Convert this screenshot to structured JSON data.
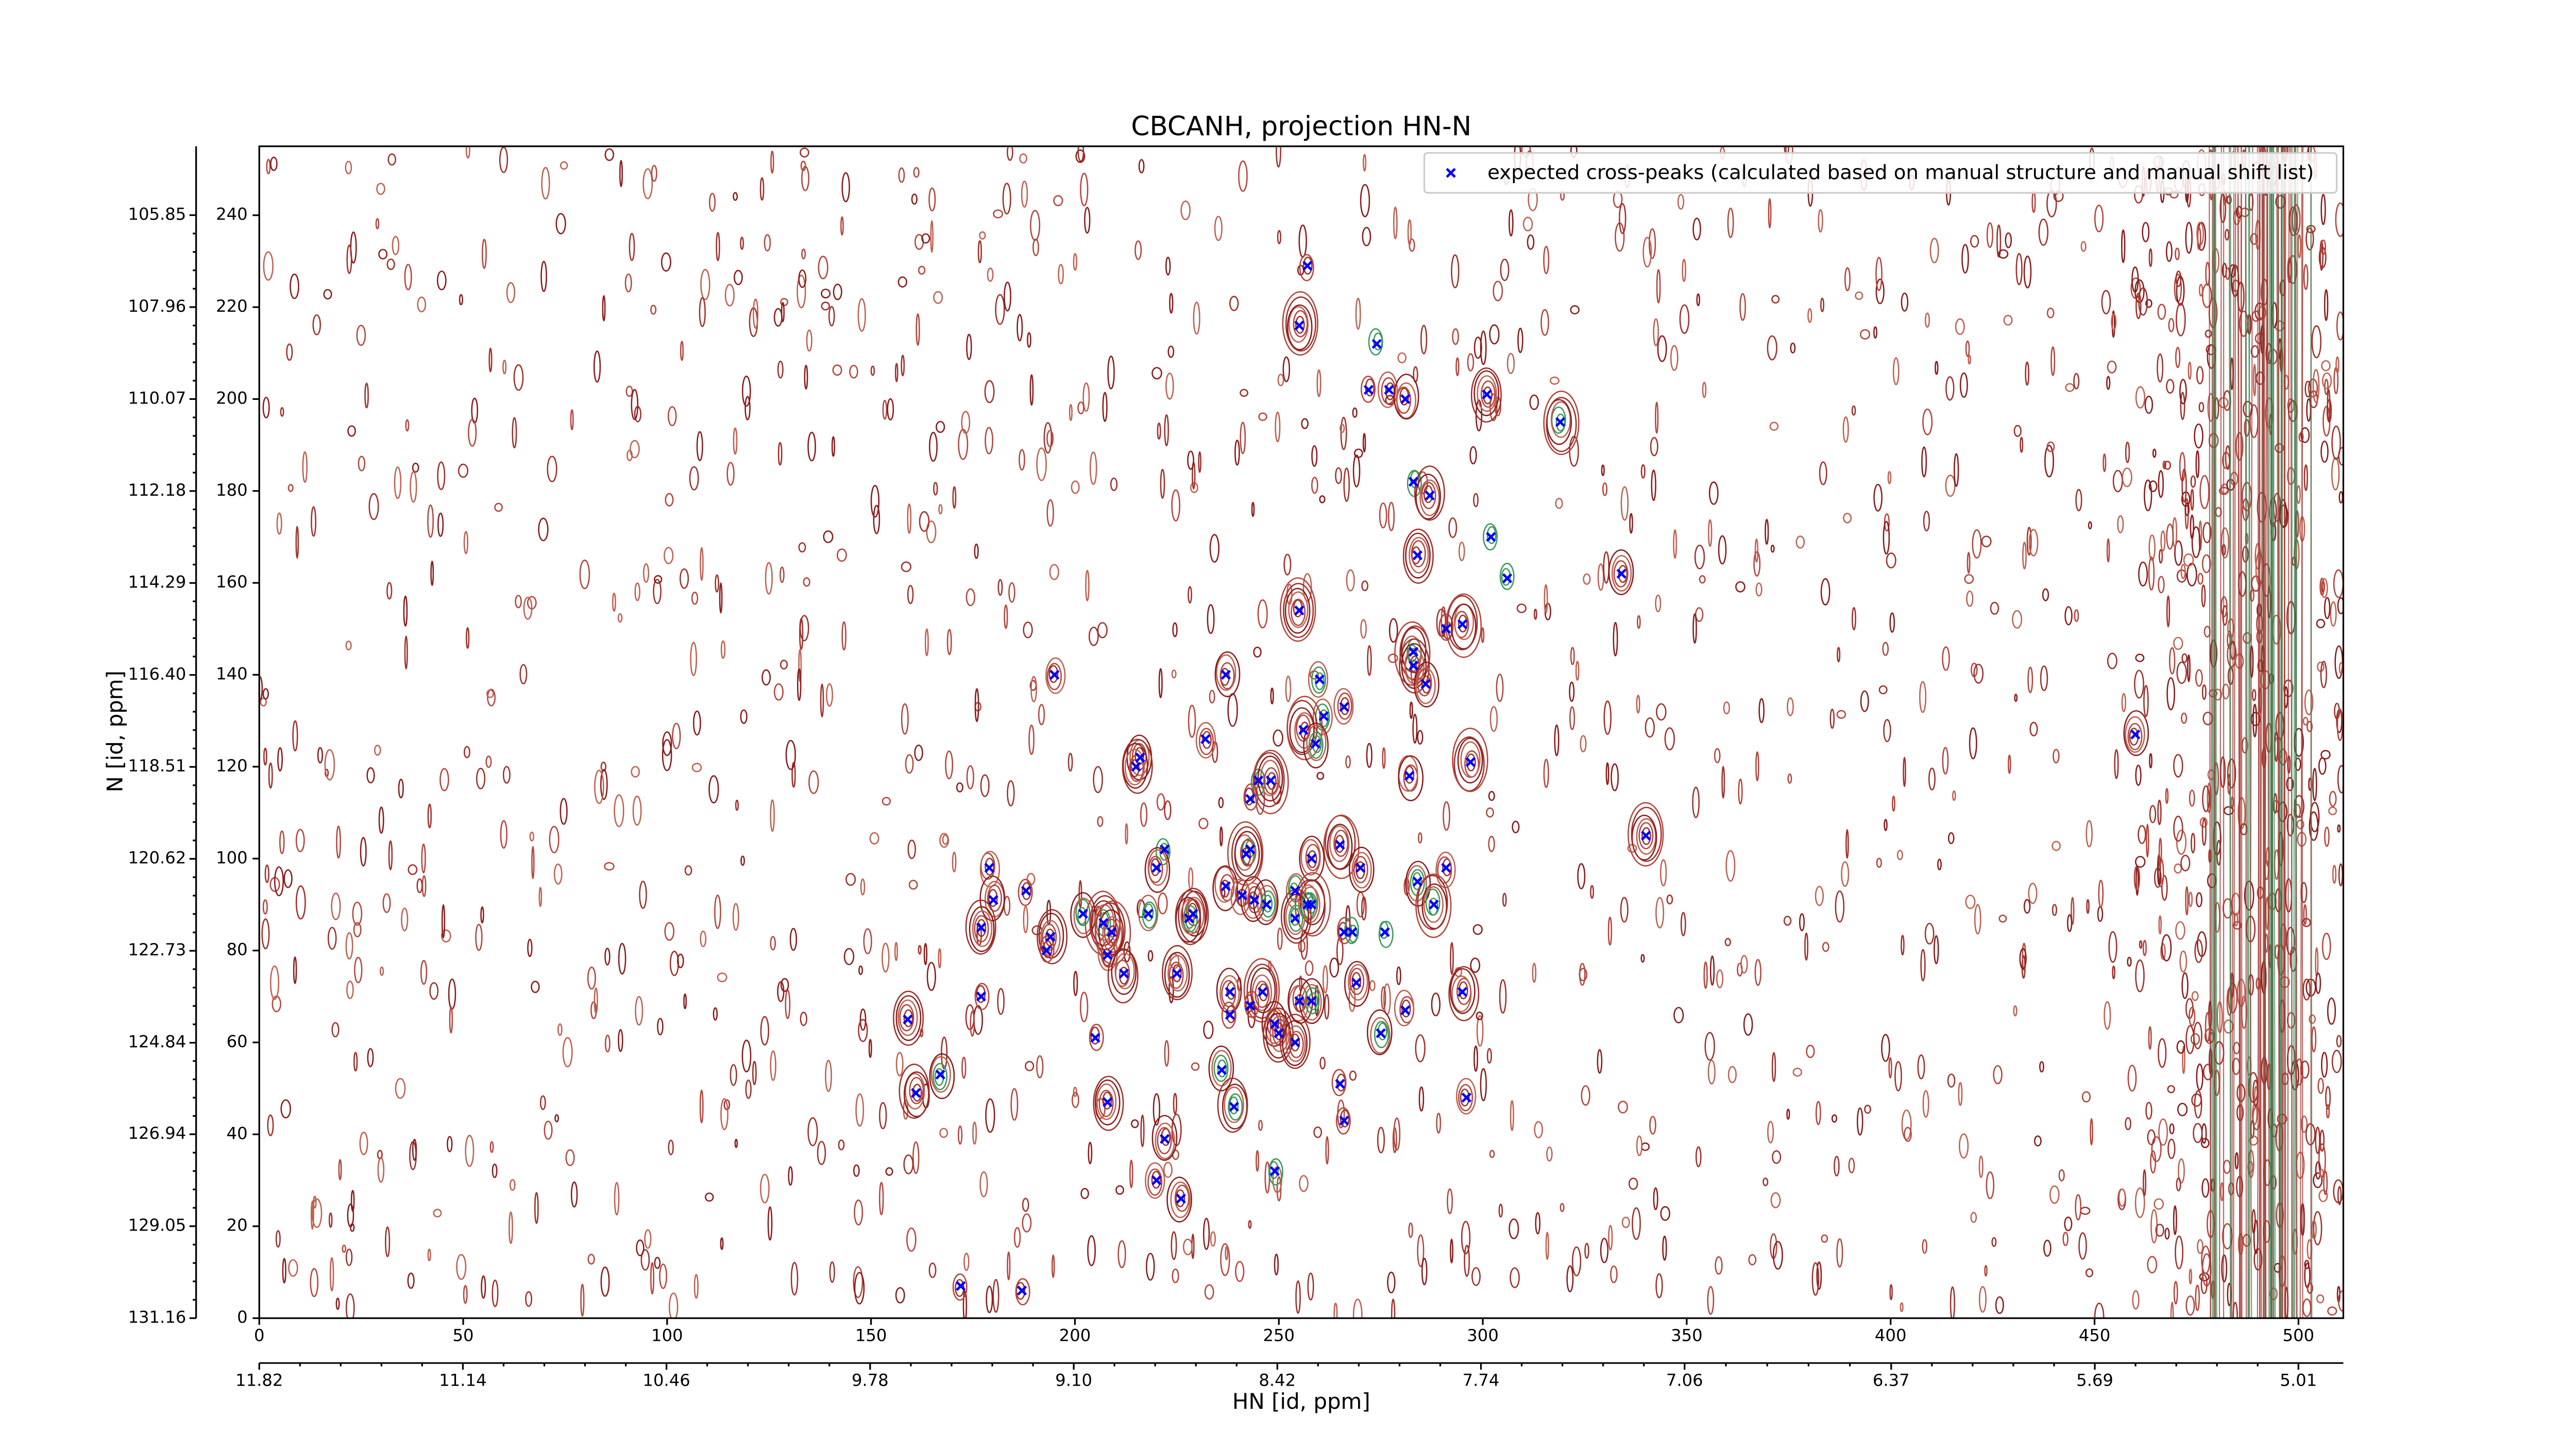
{
  "chart_data": {
    "type": "scatter",
    "title": "CBCANH, projection HN-N",
    "x_label": "HN [id, ppm]",
    "y_label": "N [id, ppm]",
    "xlim": [
      0,
      511
    ],
    "ylim": [
      0,
      255
    ],
    "xticks": [
      0,
      50,
      100,
      150,
      200,
      250,
      300,
      350,
      400,
      450,
      500
    ],
    "yticks": [
      0,
      20,
      40,
      60,
      80,
      100,
      120,
      140,
      160,
      180,
      200,
      220,
      240
    ],
    "x2lim": [
      11.82,
      4.86
    ],
    "x2ticks": [
      11.82,
      11.14,
      10.46,
      9.78,
      {
        "value": 9.1,
        "label": "9.10"
      },
      8.42,
      7.74,
      7.06,
      6.37,
      5.69,
      5.01
    ],
    "y2lim": [
      131.16,
      104.27
    ],
    "y2ticks": [
      131.16,
      129.05,
      126.94,
      124.84,
      122.73,
      120.62,
      118.51,
      {
        "value": 116.4,
        "label": "116.40"
      },
      114.29,
      112.18,
      110.07,
      107.96,
      105.85
    ],
    "legend": "upper right",
    "x": [
      257,
      255,
      274,
      272,
      277,
      281,
      301,
      319,
      283,
      287,
      302,
      284,
      306,
      334,
      255,
      291,
      295,
      283,
      283,
      286,
      195,
      237,
      260,
      266,
      261,
      256,
      259,
      232,
      460,
      216,
      215,
      297,
      282,
      245,
      248,
      243,
      340,
      243,
      242,
      222,
      265,
      220,
      258,
      270,
      179,
      291,
      284,
      237,
      188,
      254,
      180,
      241,
      244,
      247,
      258,
      257,
      288,
      202,
      229,
      228,
      218,
      254,
      207,
      177,
      266,
      268,
      276,
      194,
      209,
      193,
      208,
      212,
      225,
      269,
      238,
      246,
      295,
      177,
      255,
      258,
      238,
      243,
      281,
      159,
      249,
      250,
      275,
      205,
      254,
      236,
      167,
      265,
      161,
      296,
      208,
      239,
      266,
      222,
      249,
      220,
      226,
      172,
      187
    ],
    "series": [
      {
        "name": "expected cross-peaks (calculated based on manual structure and manual shift list)",
        "color": "#0000ff",
        "values": [
          229,
          216,
          212,
          202,
          202,
          200,
          201,
          195,
          182,
          179,
          170,
          166,
          161,
          162,
          154,
          150,
          151,
          145,
          142,
          138,
          140,
          140,
          139,
          133,
          131,
          128,
          125,
          126,
          127,
          122,
          120,
          121,
          118,
          117,
          117,
          113,
          105,
          102,
          101,
          102,
          103,
          98,
          100,
          98,
          98,
          98,
          95,
          94,
          93,
          93,
          91,
          92,
          91,
          90,
          90,
          90,
          90,
          88,
          88,
          87,
          88,
          87,
          86,
          85,
          84,
          84,
          84,
          83,
          84,
          80,
          79,
          75,
          75,
          73,
          71,
          71,
          71,
          70,
          69,
          69,
          66,
          68,
          67,
          65,
          64,
          62,
          62,
          61,
          60,
          54,
          53,
          51,
          49,
          48,
          47,
          46,
          43,
          39,
          32,
          30,
          26,
          7,
          6
        ]
      }
    ]
  }
}
